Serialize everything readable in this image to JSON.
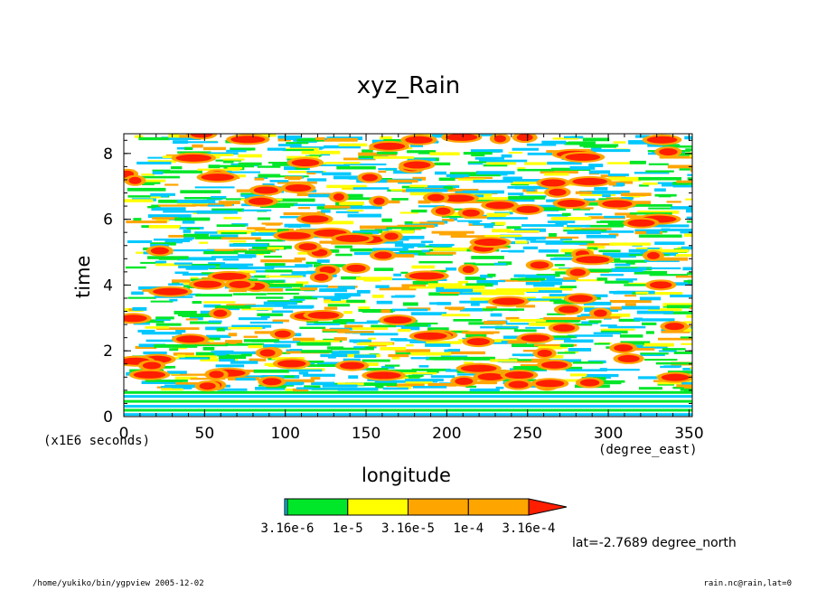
{
  "chart_data": {
    "type": "heatmap",
    "title": "xyz_Rain",
    "xlabel": "longitude",
    "xunits": "(degree_east)",
    "ylabel": "time",
    "yunits": "(x1E6 seconds)",
    "xlim": [
      0,
      352
    ],
    "ylim": [
      0,
      8.6
    ],
    "xticks": [
      "0",
      "50",
      "100",
      "150",
      "200",
      "250",
      "300",
      "350"
    ],
    "yticks": [
      "0",
      "2",
      "4",
      "6",
      "8"
    ],
    "colorbar": {
      "levels": [
        3.16e-06,
        1e-05,
        3.16e-05,
        0.0001,
        0.000316
      ],
      "colors": [
        "#00c8ff",
        "#00e628",
        "#ffff00",
        "#ffa500",
        "#ff1e00"
      ],
      "tick_labels": [
        "3.16e-6",
        "1e-5",
        "3.16e-5",
        "1e-4",
        "3.16e-4"
      ],
      "overflow_arrow": "right"
    },
    "annotation": "lat=-2.7689 degree_north",
    "background_color": "#ffffff"
  },
  "footer": {
    "left": "/home/yukiko/bin/ygpview  2005-12-02",
    "right": "rain.nc@rain,lat=0"
  }
}
